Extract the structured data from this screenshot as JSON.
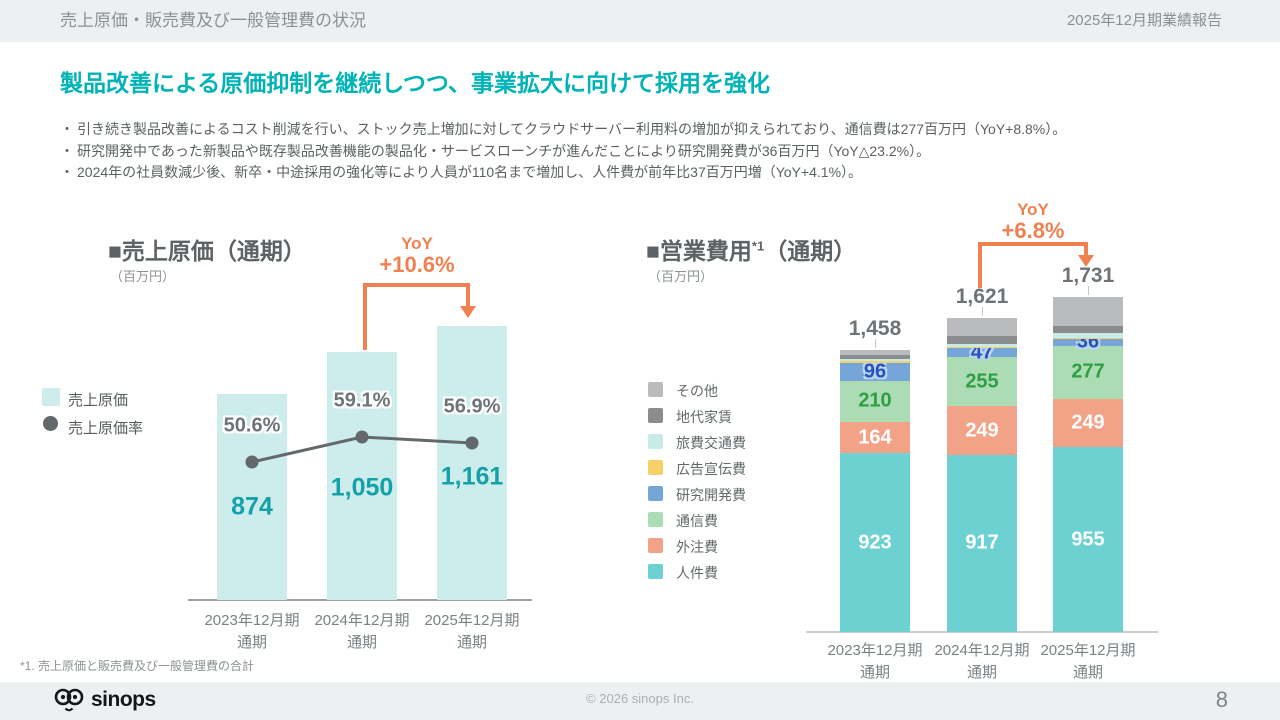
{
  "colors": {
    "headline_teal": "#00b3b6",
    "accent_orange": "#f08050",
    "header_bg": "#edf0f1",
    "value_teal": "#14a1a8"
  },
  "header": {
    "title": "売上原価・販売費及び一般管理費の状況",
    "report_title": "2025年12月期業績報告"
  },
  "headline": "製品改善による原価抑制を継続しつつ、事業拡大に向けて採用を強化",
  "bullets": [
    "引き続き製品改善によるコスト削減を行い、ストック売上増加に対してクラウドサーバー利用料の増加が抑えられており、通信費は277百万円（YoY+8.8%）。",
    "研究開発中であった新製品や既存製品改善機能の製品化・サービスローンチが進んだことにより研究開発費が36百万円（YoY△23.2%）。",
    "2024年の社員数減少後、新卒・中途採用の強化等により人員が110名まで増加し、人件費が前年比37百万円増（YoY+4.1%）。"
  ],
  "chart_data": [
    {
      "type": "bar",
      "title": "■売上原価（通期）",
      "unit_label": "（百万円）",
      "yoy": {
        "label": "YoY",
        "value": "+10.6%"
      },
      "categories": [
        "2023年12月期",
        "2024年12月期",
        "2025年12月期"
      ],
      "category_sub": "通期",
      "bars": {
        "name": "売上原価",
        "color": "#cdecec",
        "values": [
          874,
          1050,
          1161
        ],
        "labels": [
          "874",
          "1,050",
          "1,161"
        ]
      },
      "line": {
        "name": "売上原価率",
        "color": "#63686a",
        "values_pct": [
          50.6,
          59.1,
          56.9
        ],
        "labels": [
          "50.6%",
          "59.1%",
          "56.9%"
        ]
      }
    },
    {
      "type": "stacked-bar",
      "title_prefix": "■営業費用",
      "title_sup": "*1",
      "title_suffix": "（通期）",
      "unit_label": "（百万円）",
      "yoy": {
        "label": "YoY",
        "value": "+6.8%"
      },
      "categories": [
        "2023年12月期",
        "2024年12月期",
        "2025年12月期"
      ],
      "category_sub": "通期",
      "totals": [
        1458,
        1621,
        1731
      ],
      "total_labels": [
        "1,458",
        "1,621",
        "1,731"
      ],
      "legend": [
        {
          "label": "その他",
          "color": "#b9bbbc"
        },
        {
          "label": "地代家賃",
          "color": "#8a8c8d"
        },
        {
          "label": "旅費交通費",
          "color": "#c9ebe7"
        },
        {
          "label": "広告宣伝費",
          "color": "#f6d169"
        },
        {
          "label": "研究開発費",
          "color": "#76a5da"
        },
        {
          "label": "通信費",
          "color": "#abdcb4"
        },
        {
          "label": "外注費",
          "color": "#f2a287"
        },
        {
          "label": "人件費",
          "color": "#6dd1d2"
        }
      ],
      "series": [
        {
          "name": "人件費",
          "color": "#6dd1d2",
          "values": [
            923,
            917,
            955
          ],
          "labels": [
            "923",
            "917",
            "955"
          ],
          "label_class": "seg-white"
        },
        {
          "name": "外注費",
          "color": "#f2a287",
          "values": [
            164,
            249,
            249
          ],
          "labels": [
            "164",
            "249",
            "249"
          ],
          "label_class": "seg-white"
        },
        {
          "name": "通信費",
          "color": "#abdcb4",
          "values": [
            210,
            255,
            277
          ],
          "labels": [
            "210",
            "255",
            "277"
          ],
          "label_class": "seg-green"
        },
        {
          "name": "研究開発費",
          "color": "#76a5da",
          "values": [
            96,
            47,
            36
          ],
          "labels": [
            "96",
            "47",
            "36"
          ],
          "label_class": "seg-blue"
        },
        {
          "name": "広告宣伝費",
          "color": "#f6d169",
          "values": [
            9,
            7,
            5
          ],
          "estimated": true
        },
        {
          "name": "旅費交通費",
          "color": "#c9ebe7",
          "values": [
            8,
            16,
            24
          ],
          "estimated": true
        },
        {
          "name": "地代家賃",
          "color": "#8a8c8d",
          "values": [
            20,
            40,
            35
          ],
          "estimated": true
        },
        {
          "name": "その他",
          "color": "#b9bbbc",
          "values": [
            28,
            90,
            150
          ],
          "estimated": true
        }
      ]
    }
  ],
  "footnote": "*1. 売上原価と販売費及び一般管理費の合計",
  "footer": {
    "logo_text": "sinops",
    "copyright": "© 2026 sinops Inc.",
    "page_number": "8"
  }
}
